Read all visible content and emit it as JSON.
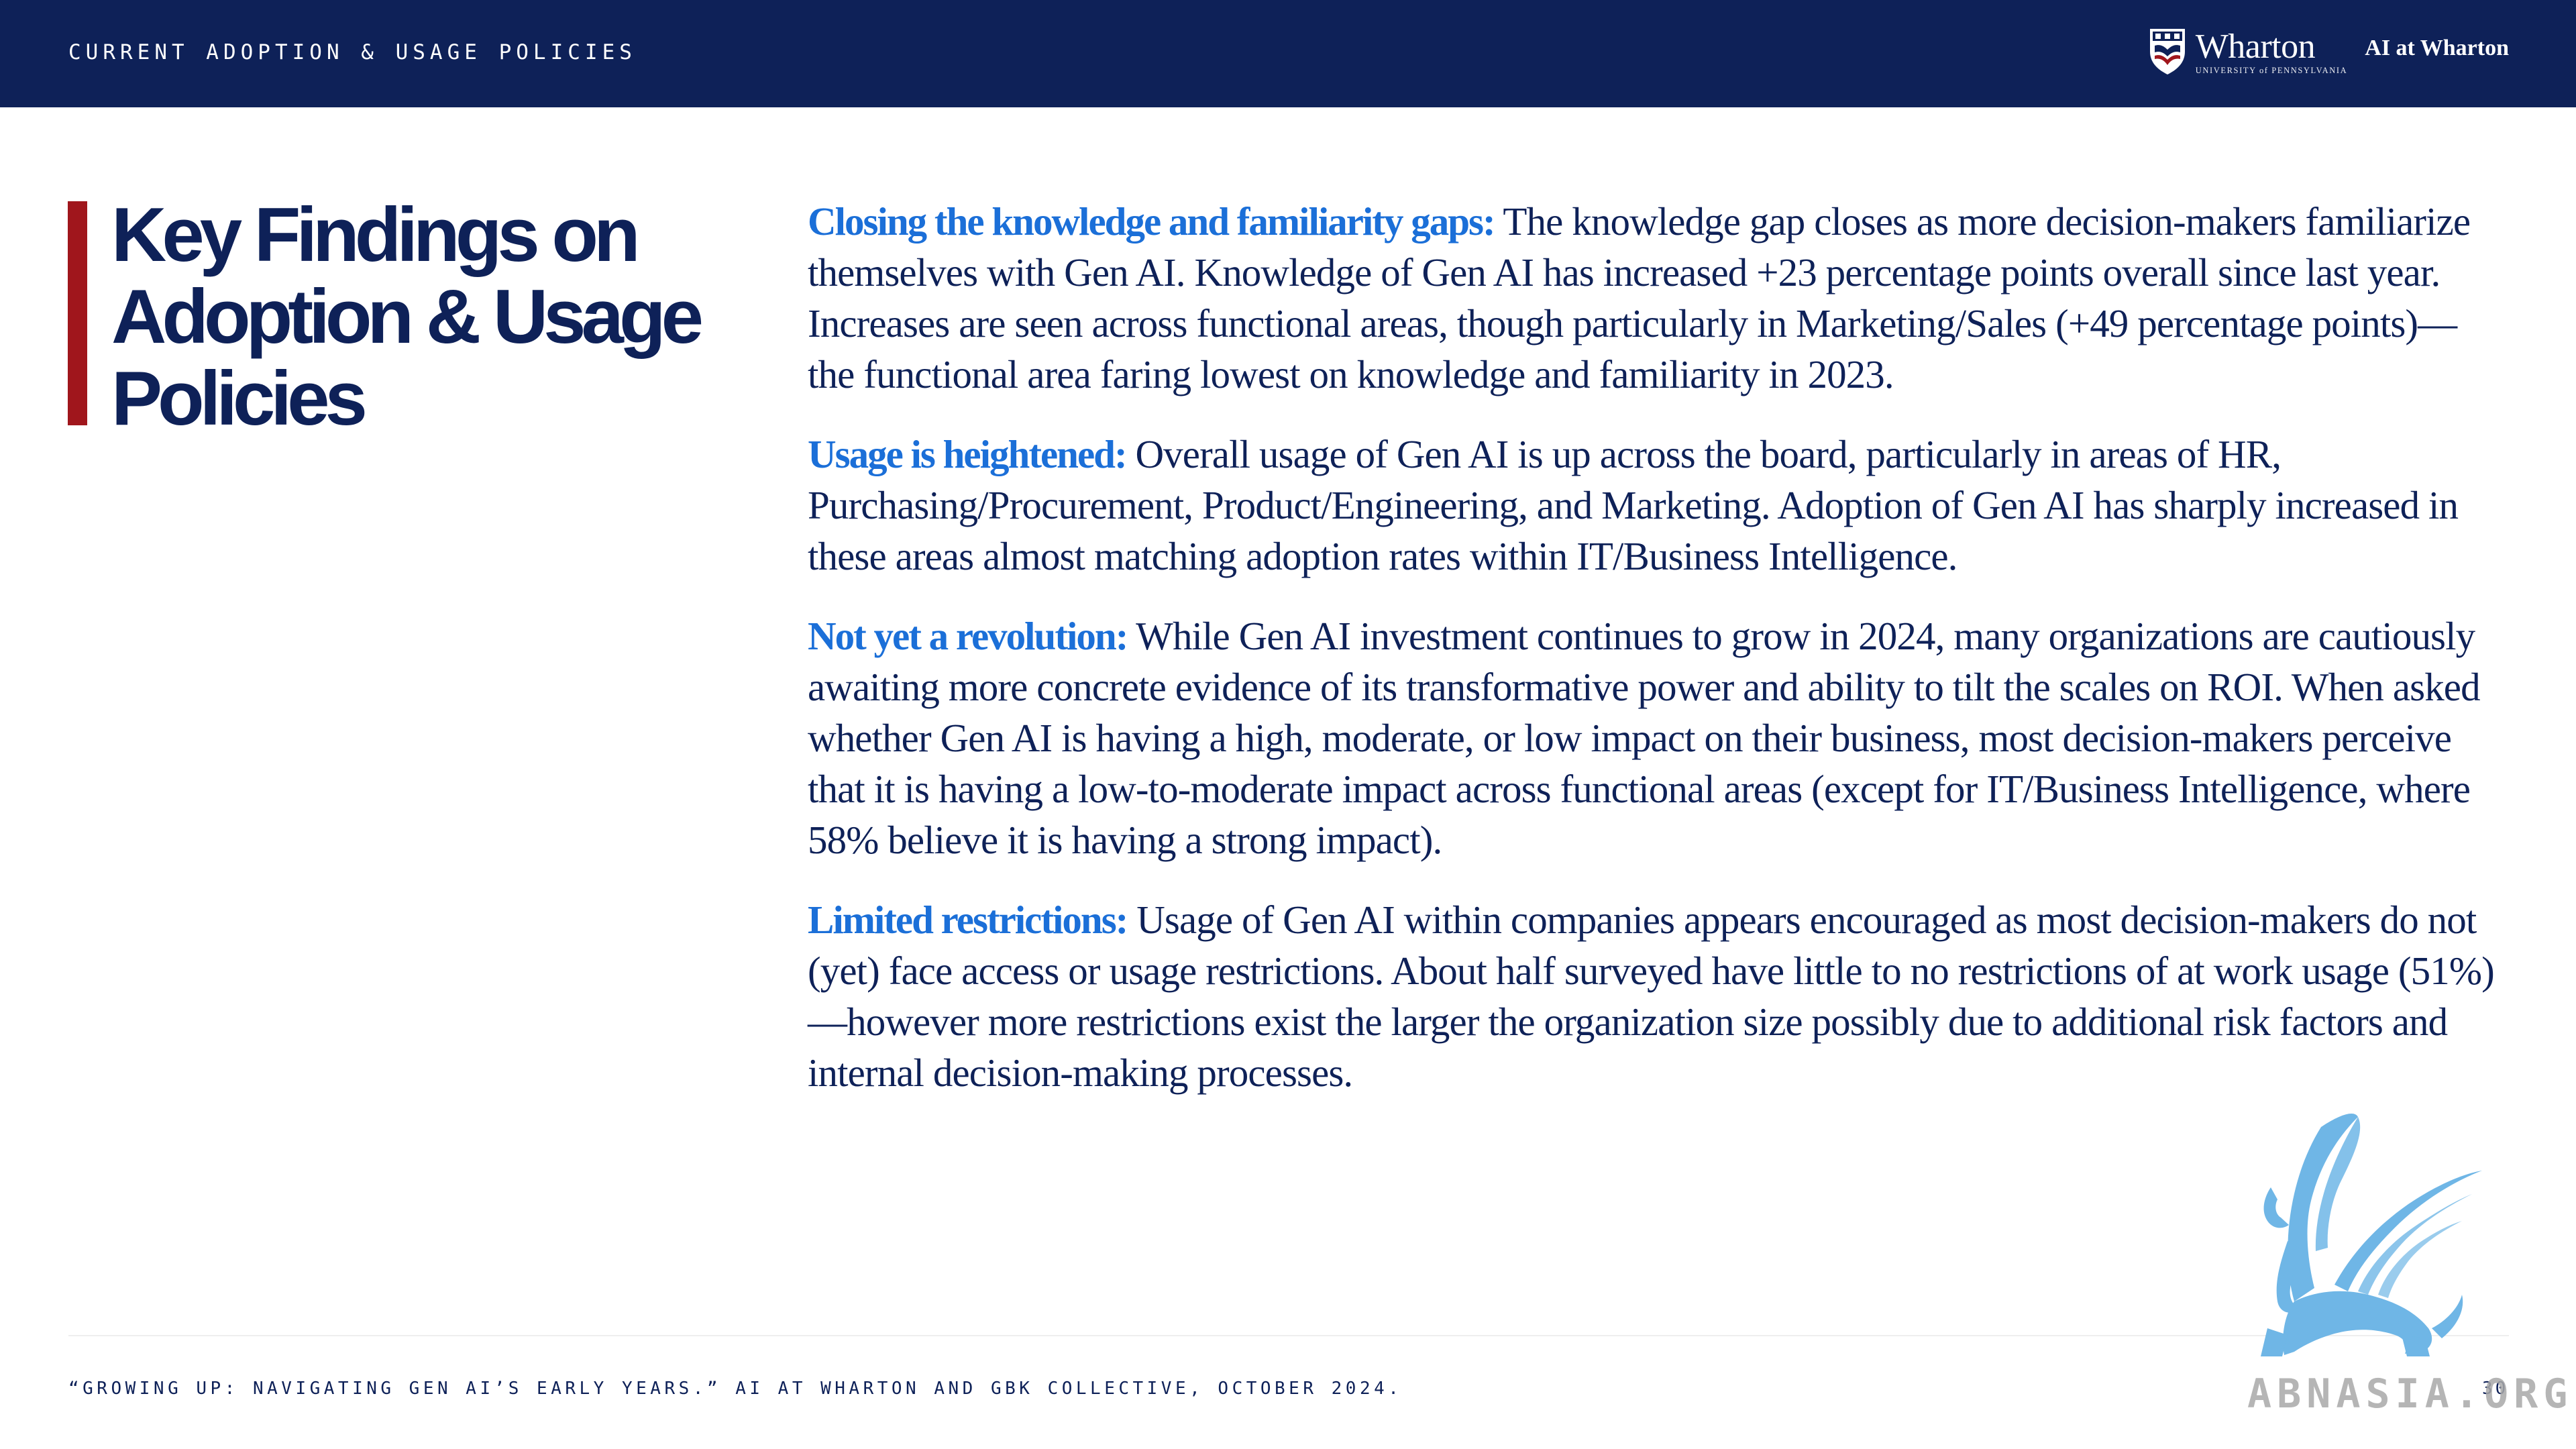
{
  "header": {
    "section_label": "CURRENT ADOPTION & USAGE POLICIES",
    "brand": {
      "wordmark": "Wharton",
      "wordmark_sub": "UNIVERSITY of PENNSYLVANIA",
      "unit_name": "AI at Wharton",
      "logo_icon": "penn-shield-icon"
    },
    "background_color": "#0e2158"
  },
  "title": "Key Findings on\nAdoption & Usage\nPolicies",
  "findings": [
    {
      "lead": "Closing the knowledge and familiarity gaps:",
      "text": "The knowledge gap closes as more decision-makers familiarize themselves with Gen AI. Knowledge of Gen AI has increased +23 percentage points overall since last year. Increases are seen across functional areas, though particularly in Marketing/Sales (+49 percentage points)—the functional area faring lowest on knowledge and familiarity in 2023."
    },
    {
      "lead": "Usage is heightened:",
      "text": "Overall usage of Gen AI is up across the board, particularly in areas of HR, Purchasing/Procurement, Product/Engineering, and Marketing. Adoption of Gen AI has sharply increased in these areas almost matching adoption rates within IT/Business Intelligence."
    },
    {
      "lead": "Not yet a revolution:",
      "text": "While Gen AI investment continues to grow in 2024, many organizations are cautiously awaiting more concrete evidence of its transformative power and ability to tilt the scales on ROI. When asked whether Gen AI is having a high, moderate, or low impact on their business, most decision-makers perceive that it is having a low-to-moderate impact across functional areas (except for IT/Business Intelligence, where 58% believe it is having a strong impact)."
    },
    {
      "lead": "Limited restrictions:",
      "text": "Usage of Gen AI within companies appears encouraged as most decision-makers do not (yet) face access or usage restrictions. About half surveyed have little to no restrictions of at work usage (51%)—however more restrictions exist the larger the organization size possibly due to additional risk factors and internal decision-making processes."
    }
  ],
  "footer": {
    "citation": "“GROWING UP: NAVIGATING GEN AI’S EARLY YEARS.” AI AT WHARTON AND GBK COLLECTIVE, OCTOBER 2024.",
    "page_number": "30"
  },
  "watermark": {
    "text": "ABNASIA.ORG",
    "icon": "griffin-icon"
  },
  "colors": {
    "navy": "#0e2158",
    "accent_red": "#a0161c",
    "lead_blue": "#1b6fd8",
    "griffin_blue": "#6fb6e6",
    "watermark_gray": "#a9a9a9"
  }
}
